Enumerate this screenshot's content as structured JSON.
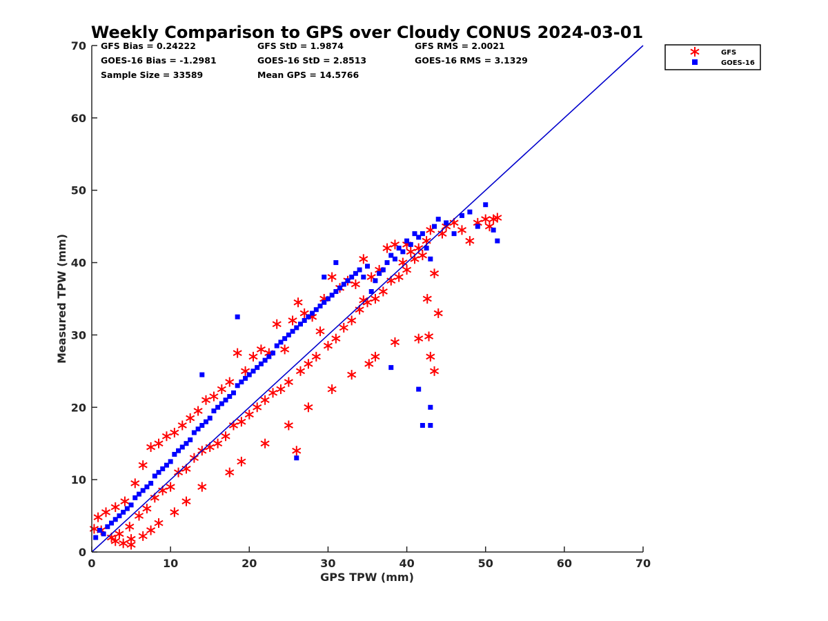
{
  "chart_data": {
    "type": "scatter",
    "title": "Weekly Comparison to GPS over Cloudy CONUS 2024-03-01",
    "xlabel": "GPS TPW (mm)",
    "ylabel": "Measured TPW (mm)",
    "xlim": [
      0,
      70
    ],
    "ylim": [
      0,
      70
    ],
    "xticks": [
      "0",
      "10",
      "20",
      "30",
      "40",
      "50",
      "60",
      "70"
    ],
    "yticks": [
      "0",
      "10",
      "20",
      "30",
      "40",
      "50",
      "60",
      "70"
    ],
    "grid": false,
    "legend_position": "outside top-right",
    "reference_line": {
      "x": [
        0,
        70
      ],
      "y": [
        0,
        70
      ],
      "color": "#0000cc"
    },
    "stats": [
      [
        "GFS Bias = 0.24222",
        "GFS StD = 1.9874",
        "GFS RMS = 2.0021"
      ],
      [
        "GOES-16 Bias = -1.2981",
        "GOES-16 StD = 2.8513",
        "GOES-16 RMS = 3.1329"
      ],
      [
        "Sample Size = 33589",
        "Mean GPS = 14.5766",
        ""
      ]
    ],
    "series": [
      {
        "name": "GFS",
        "marker": "asterisk",
        "color": "#ff0000",
        "x": [
          0.3,
          0.8,
          1.2,
          1.8,
          2.5,
          3.0,
          3.5,
          4.2,
          4.8,
          5.5,
          6.0,
          6.5,
          7.0,
          7.5,
          8.0,
          8.5,
          9.0,
          9.5,
          10.0,
          10.5,
          11.0,
          11.5,
          12.0,
          12.5,
          13.0,
          13.5,
          14.0,
          14.5,
          15.0,
          15.5,
          16.0,
          16.5,
          17.0,
          17.5,
          18.0,
          18.5,
          19.0,
          19.5,
          20.0,
          20.5,
          21.0,
          21.5,
          22.0,
          22.5,
          23.0,
          23.5,
          24.0,
          24.5,
          25.0,
          25.5,
          26.0,
          26.2,
          26.5,
          27.0,
          27.5,
          28.0,
          28.5,
          29.0,
          29.5,
          30.0,
          30.5,
          31.0,
          31.5,
          32.0,
          32.5,
          33.0,
          33.5,
          34.0,
          34.5,
          35.0,
          35.5,
          36.0,
          36.5,
          37.0,
          37.5,
          38.0,
          38.5,
          39.0,
          39.5,
          40.0,
          40.5,
          41.0,
          41.5,
          42.0,
          42.5,
          43.0,
          43.5,
          44.0,
          44.5,
          45.0,
          46.0,
          47.0,
          48.0,
          49.0,
          50.0,
          50.5,
          51.0,
          51.5,
          3.0,
          4.0,
          5.0,
          5.0,
          6.5,
          7.5,
          8.5,
          10.5,
          12.0,
          14.0,
          17.5,
          19.0,
          22.0,
          25.0,
          27.5,
          30.5,
          33.0,
          36.0,
          38.5,
          41.5,
          43.0,
          43.5,
          42.8,
          42.6,
          40.0,
          34.5,
          35.2
        ],
        "y": [
          3.2,
          4.8,
          3.0,
          5.5,
          2.0,
          6.2,
          2.5,
          7.0,
          3.5,
          9.5,
          5.0,
          12.0,
          6.0,
          14.5,
          7.5,
          15.0,
          8.5,
          16.0,
          9.0,
          16.5,
          11.0,
          17.5,
          11.5,
          18.5,
          13.0,
          19.5,
          14.0,
          21.0,
          14.5,
          21.5,
          15.0,
          22.5,
          16.0,
          23.5,
          17.5,
          27.5,
          18.0,
          25.0,
          19.0,
          27.0,
          20.0,
          28.0,
          21.0,
          27.5,
          22.0,
          31.5,
          22.5,
          28.0,
          23.5,
          32.0,
          14.0,
          34.5,
          25.0,
          33.0,
          26.0,
          32.5,
          27.0,
          30.5,
          35.0,
          28.5,
          38.0,
          29.5,
          36.5,
          31.0,
          37.5,
          32.0,
          37.0,
          33.5,
          40.5,
          34.5,
          38.0,
          35.0,
          39.0,
          36.0,
          42.0,
          37.5,
          42.5,
          38.0,
          40.0,
          39.0,
          41.5,
          40.5,
          42.0,
          41.0,
          43.0,
          44.5,
          38.5,
          33.0,
          44.0,
          45.0,
          45.5,
          44.5,
          43.0,
          45.5,
          46.0,
          45.0,
          46.0,
          46.2,
          1.5,
          1.2,
          1.0,
          1.8,
          2.2,
          3.0,
          4.0,
          5.5,
          7.0,
          9.0,
          11.0,
          12.5,
          15.0,
          17.5,
          20.0,
          22.5,
          24.5,
          27.0,
          29.0,
          29.5,
          27.0,
          25.0,
          29.8,
          35.0,
          42.5,
          34.8,
          26.0
        ]
      },
      {
        "name": "GOES-16",
        "marker": "square",
        "color": "#0000ff",
        "x": [
          0.5,
          1.0,
          1.5,
          2.0,
          2.5,
          3.0,
          3.5,
          4.0,
          4.5,
          5.0,
          5.5,
          6.0,
          6.5,
          7.0,
          7.5,
          8.0,
          8.5,
          9.0,
          9.5,
          10.0,
          10.5,
          11.0,
          11.5,
          12.0,
          12.5,
          13.0,
          13.5,
          14.0,
          14.5,
          15.0,
          15.5,
          16.0,
          16.5,
          17.0,
          17.5,
          18.0,
          18.5,
          19.0,
          19.5,
          20.0,
          20.5,
          21.0,
          21.5,
          22.0,
          22.5,
          23.0,
          23.5,
          24.0,
          24.5,
          25.0,
          25.5,
          26.0,
          26.5,
          27.0,
          27.5,
          28.0,
          28.5,
          29.0,
          29.5,
          30.0,
          30.5,
          31.0,
          31.5,
          32.0,
          32.5,
          33.0,
          33.5,
          34.0,
          34.5,
          35.0,
          35.5,
          36.0,
          36.5,
          37.0,
          37.5,
          38.0,
          38.5,
          39.0,
          39.5,
          40.0,
          40.5,
          41.0,
          41.5,
          42.0,
          42.5,
          43.0,
          43.5,
          44.0,
          45.0,
          46.0,
          47.0,
          48.0,
          49.0,
          50.0,
          51.0,
          51.5,
          18.5,
          26.0,
          42.0,
          43.0,
          43.0,
          41.5,
          14.0,
          38.0,
          29.5,
          31.0
        ],
        "y": [
          2.0,
          3.0,
          2.5,
          3.5,
          4.0,
          4.5,
          5.0,
          5.5,
          6.0,
          6.5,
          7.5,
          8.0,
          8.5,
          9.0,
          9.5,
          10.5,
          11.0,
          11.5,
          12.0,
          12.5,
          13.5,
          14.0,
          14.5,
          15.0,
          15.5,
          16.5,
          17.0,
          17.5,
          18.0,
          18.5,
          19.5,
          20.0,
          20.5,
          21.0,
          21.5,
          22.0,
          23.0,
          23.5,
          24.0,
          24.5,
          25.0,
          25.5,
          26.0,
          26.5,
          27.0,
          27.5,
          28.5,
          29.0,
          29.5,
          30.0,
          30.5,
          31.0,
          31.5,
          32.0,
          32.5,
          33.0,
          33.5,
          34.0,
          34.5,
          35.0,
          35.5,
          36.0,
          36.5,
          37.0,
          37.5,
          38.0,
          38.5,
          39.0,
          38.0,
          39.5,
          36.0,
          37.5,
          38.5,
          39.0,
          40.0,
          41.0,
          40.5,
          42.0,
          41.5,
          43.0,
          42.5,
          44.0,
          43.5,
          44.0,
          42.0,
          40.5,
          45.0,
          46.0,
          45.5,
          44.0,
          46.5,
          47.0,
          45.0,
          48.0,
          44.5,
          43.0,
          32.5,
          13.0,
          17.5,
          20.0,
          17.5,
          22.5,
          24.5,
          25.5,
          38.0,
          40.0
        ]
      }
    ]
  }
}
